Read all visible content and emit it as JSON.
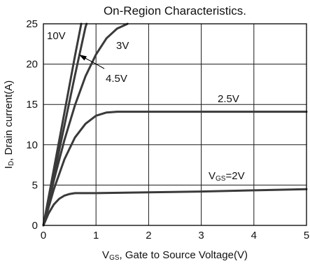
{
  "chart_data": {
    "type": "line",
    "title": "On-Region Characteristics.",
    "xlabel": {
      "main": "V",
      "sub": "GS",
      "rest": ", Gate to Source Voltage(V)"
    },
    "ylabel": {
      "main": "I",
      "sub": "D",
      "rest": ", Drain current(A)"
    },
    "xlim": [
      0,
      5
    ],
    "ylim": [
      0,
      25
    ],
    "x_ticks": [
      "0",
      "1",
      "2",
      "3",
      "4",
      "5"
    ],
    "y_ticks": [
      "0",
      "5",
      "10",
      "15",
      "20",
      "25"
    ],
    "grid": true,
    "colors": {
      "curve": "#3a3a3a",
      "grid": "#1a1a1a",
      "axis": "#000000",
      "text": "#111111"
    },
    "series": [
      {
        "name": "10V",
        "x": [
          0,
          0.2,
          0.4,
          0.6,
          0.72
        ],
        "y": [
          0,
          7.0,
          14.0,
          21.0,
          25.0
        ]
      },
      {
        "name": "4.5V",
        "x": [
          0,
          0.2,
          0.4,
          0.6,
          0.8,
          0.82
        ],
        "y": [
          0,
          6.2,
          12.4,
          18.6,
          24.6,
          25.0
        ]
      },
      {
        "name": "3V",
        "x": [
          0,
          0.2,
          0.4,
          0.6,
          0.8,
          1.0,
          1.2,
          1.4,
          1.6
        ],
        "y": [
          0,
          5.6,
          10.6,
          14.9,
          18.5,
          21.2,
          23.2,
          24.4,
          25.0
        ]
      },
      {
        "name": "2.5V",
        "x": [
          0,
          0.2,
          0.4,
          0.6,
          0.8,
          1.0,
          1.2,
          1.4,
          1.6,
          2.0,
          3.0,
          4.0,
          5.0
        ],
        "y": [
          0,
          4.5,
          8.2,
          10.9,
          12.6,
          13.6,
          14.0,
          14.1,
          14.1,
          14.1,
          14.1,
          14.1,
          14.1
        ]
      },
      {
        "name": "VGS=2V",
        "x": [
          0,
          0.1,
          0.2,
          0.3,
          0.4,
          0.5,
          0.6,
          0.7,
          1.0,
          2.0,
          3.0,
          4.0,
          5.0
        ],
        "y": [
          0,
          1.5,
          2.6,
          3.3,
          3.7,
          3.9,
          4.0,
          4.0,
          4.0,
          4.1,
          4.2,
          4.35,
          4.5
        ]
      }
    ],
    "annotations": [
      {
        "text": "10V"
      },
      {
        "text": "3V"
      },
      {
        "text": "4.5V"
      },
      {
        "text": "2.5V"
      },
      {
        "main": "V",
        "sub": "GS",
        "rest": "=2V"
      }
    ]
  }
}
